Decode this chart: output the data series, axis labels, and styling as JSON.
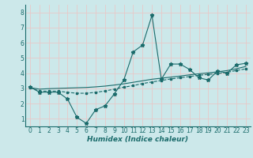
{
  "xlabel": "Humidex (Indice chaleur)",
  "bg_color": "#cce8ea",
  "grid_color": "#e8c8c8",
  "line_color": "#1a6b6b",
  "xlim": [
    -0.5,
    23.5
  ],
  "ylim": [
    0.5,
    8.5
  ],
  "xticks": [
    0,
    1,
    2,
    3,
    4,
    5,
    6,
    7,
    8,
    9,
    10,
    11,
    12,
    13,
    14,
    15,
    16,
    17,
    18,
    19,
    20,
    21,
    22,
    23
  ],
  "yticks": [
    1,
    2,
    3,
    4,
    5,
    6,
    7,
    8
  ],
  "main_x": [
    0,
    1,
    2,
    3,
    4,
    5,
    6,
    7,
    8,
    9,
    10,
    11,
    12,
    13,
    14,
    15,
    16,
    17,
    18,
    19,
    20,
    21,
    22,
    23
  ],
  "main_y": [
    3.1,
    2.75,
    2.75,
    2.75,
    2.3,
    1.1,
    0.7,
    1.6,
    1.85,
    2.65,
    3.55,
    5.4,
    5.85,
    7.8,
    3.6,
    4.6,
    4.6,
    4.25,
    3.7,
    3.55,
    4.15,
    4.0,
    4.55,
    4.65
  ],
  "line2_x": [
    0,
    1,
    2,
    3,
    4,
    5,
    6,
    7,
    8,
    9,
    10,
    11,
    12,
    13,
    14,
    15,
    16,
    17,
    18,
    19,
    20,
    21,
    22,
    23
  ],
  "line2_y": [
    3.05,
    2.82,
    2.82,
    2.82,
    2.74,
    2.68,
    2.68,
    2.74,
    2.83,
    2.95,
    3.08,
    3.18,
    3.32,
    3.42,
    3.52,
    3.62,
    3.7,
    3.78,
    3.86,
    3.92,
    3.98,
    4.05,
    4.18,
    4.28
  ],
  "line3_x": [
    0,
    1,
    2,
    3,
    4,
    5,
    6,
    7,
    8,
    9,
    10,
    11,
    12,
    13,
    14,
    15,
    16,
    17,
    18,
    19,
    20,
    21,
    22,
    23
  ],
  "line3_y": [
    3.05,
    2.95,
    2.98,
    3.0,
    3.02,
    3.04,
    3.06,
    3.1,
    3.15,
    3.22,
    3.3,
    3.4,
    3.5,
    3.6,
    3.67,
    3.74,
    3.81,
    3.89,
    3.96,
    4.02,
    4.09,
    4.17,
    4.29,
    4.44
  ]
}
